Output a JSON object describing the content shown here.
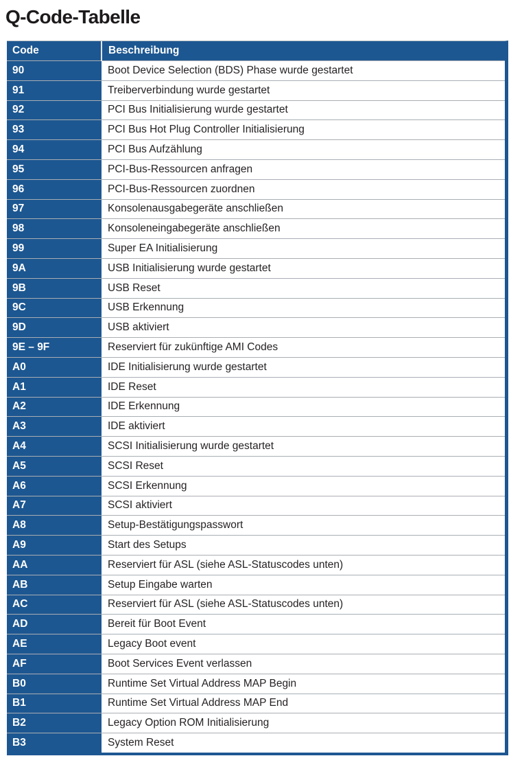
{
  "page": {
    "title": "Q-Code-Tabelle"
  },
  "colors": {
    "table_blue": "#1d5791",
    "row_divider": "#a9aeb3",
    "header_divider": "#e3e6e9",
    "description_text": "#262224"
  },
  "table": {
    "headers": {
      "code": "Code",
      "description": "Beschreibung"
    },
    "rows": [
      {
        "code": "90",
        "description": "Boot Device Selection (BDS) Phase wurde gestartet"
      },
      {
        "code": "91",
        "description": "Treiberverbindung wurde gestartet"
      },
      {
        "code": "92",
        "description": "PCI Bus Initialisierung wurde gestartet"
      },
      {
        "code": "93",
        "description": "PCI Bus Hot Plug Controller Initialisierung"
      },
      {
        "code": "94",
        "description": "PCI Bus Aufzählung"
      },
      {
        "code": "95",
        "description": "PCI-Bus-Ressourcen anfragen"
      },
      {
        "code": "96",
        "description": "PCI-Bus-Ressourcen zuordnen"
      },
      {
        "code": "97",
        "description": "Konsolenausgabegeräte anschließen"
      },
      {
        "code": "98",
        "description": "Konsoleneingabegeräte anschließen"
      },
      {
        "code": "99",
        "description": "Super EA Initialisierung"
      },
      {
        "code": "9A",
        "description": "USB Initialisierung wurde gestartet"
      },
      {
        "code": "9B",
        "description": "USB Reset"
      },
      {
        "code": "9C",
        "description": "USB Erkennung"
      },
      {
        "code": "9D",
        "description": "USB aktiviert"
      },
      {
        "code": "9E – 9F",
        "description": "Reserviert für zukünftige AMI Codes"
      },
      {
        "code": "A0",
        "description": "IDE Initialisierung wurde gestartet"
      },
      {
        "code": "A1",
        "description": "IDE Reset"
      },
      {
        "code": "A2",
        "description": "IDE Erkennung"
      },
      {
        "code": "A3",
        "description": "IDE aktiviert"
      },
      {
        "code": "A4",
        "description": "SCSI Initialisierung wurde gestartet"
      },
      {
        "code": "A5",
        "description": "SCSI Reset"
      },
      {
        "code": "A6",
        "description": "SCSI Erkennung"
      },
      {
        "code": "A7",
        "description": "SCSI aktiviert"
      },
      {
        "code": "A8",
        "description": "Setup-Bestätigungspasswort"
      },
      {
        "code": "A9",
        "description": "Start des Setups"
      },
      {
        "code": "AA",
        "description": "Reserviert für ASL (siehe ASL-Statuscodes unten)"
      },
      {
        "code": "AB",
        "description": "Setup Eingabe warten"
      },
      {
        "code": "AC",
        "description": "Reserviert für ASL (siehe ASL-Statuscodes unten)"
      },
      {
        "code": "AD",
        "description": "Bereit für Boot Event"
      },
      {
        "code": "AE",
        "description": "Legacy Boot event"
      },
      {
        "code": "AF",
        "description": "Boot Services Event verlassen"
      },
      {
        "code": "B0",
        "description": "Runtime Set Virtual Address MAP Begin"
      },
      {
        "code": "B1",
        "description": "Runtime Set Virtual Address MAP End"
      },
      {
        "code": "B2",
        "description": "Legacy Option ROM Initialisierung"
      },
      {
        "code": "B3",
        "description": "System Reset"
      }
    ]
  }
}
